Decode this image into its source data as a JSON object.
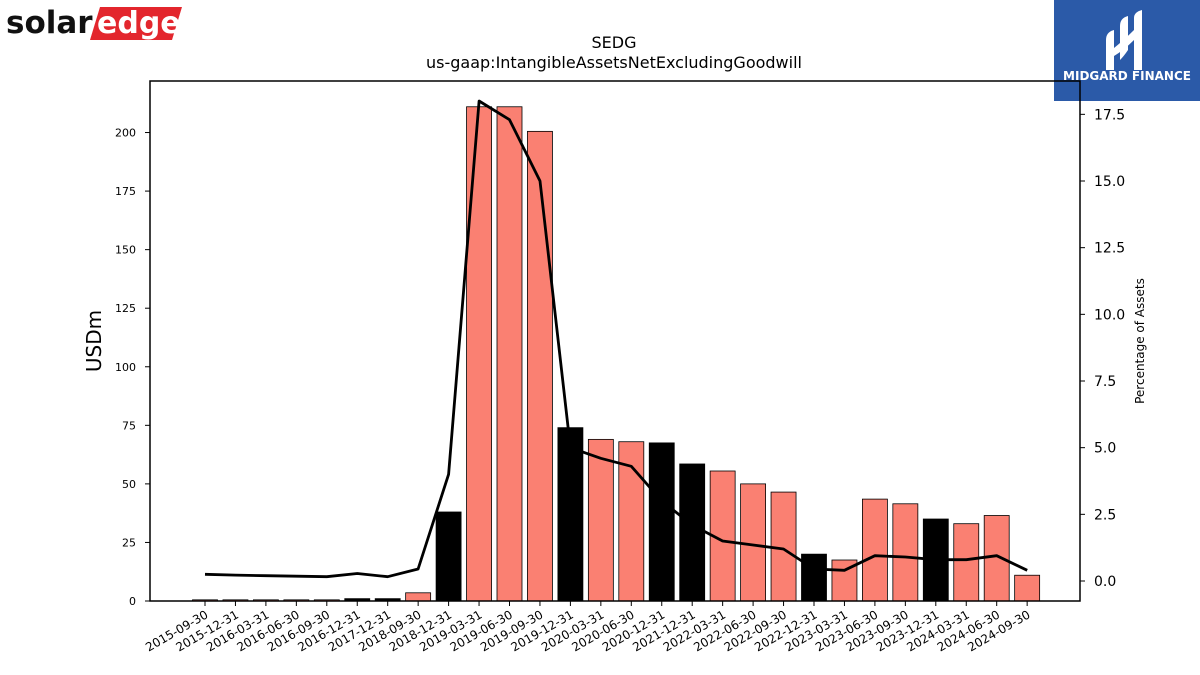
{
  "brand": {
    "logo_left_text_a": "solar",
    "logo_left_text_b": "edge",
    "logo_right_text": "MIDGARD FINANCE",
    "logo_left_color": "#e3262d",
    "logo_right_bg": "#2b5aa8"
  },
  "chart_data": {
    "type": "bar",
    "title": "SEDG",
    "subtitle": "us-gaap:IntangibleAssetsNetExcludingGoodwill",
    "ylabel": "USDm",
    "y2label": "Percentage of Assets",
    "ylim": [
      0,
      222
    ],
    "y2lim": [
      -0.75,
      18.75
    ],
    "yticks": [
      0,
      25,
      50,
      75,
      100,
      125,
      150,
      175,
      200
    ],
    "y2ticks": [
      0.0,
      2.5,
      5.0,
      7.5,
      10.0,
      12.5,
      15.0,
      17.5
    ],
    "y2tick_labels": [
      "0.0",
      "2.5",
      "5.0",
      "7.5",
      "10.0",
      "12.5",
      "15.0",
      "17.5"
    ],
    "categories": [
      "2015-09-30",
      "2015-12-31",
      "2016-03-31",
      "2016-06-30",
      "2016-09-30",
      "2016-12-31",
      "2017-12-31",
      "2018-09-30",
      "2018-12-31",
      "2019-03-31",
      "2019-06-30",
      "2019-09-30",
      "2019-12-31",
      "2020-03-31",
      "2020-06-30",
      "2020-12-31",
      "2021-12-31",
      "2022-03-31",
      "2022-06-30",
      "2022-09-30",
      "2022-12-31",
      "2023-03-31",
      "2023-06-30",
      "2023-09-30",
      "2023-12-31",
      "2024-03-31",
      "2024-06-30",
      "2024-09-30"
    ],
    "values": [
      0.5,
      0.5,
      0.5,
      0.5,
      0.5,
      1.0,
      1.0,
      3.5,
      38,
      211,
      211,
      200.5,
      74,
      69,
      68,
      67.5,
      58.5,
      55.5,
      50,
      46.5,
      20,
      17.5,
      43.5,
      41.5,
      35,
      33,
      36.5,
      11
    ],
    "bar_kind": [
      "q",
      "q",
      "q",
      "q",
      "q",
      "y",
      "y",
      "q",
      "y",
      "q",
      "q",
      "q",
      "y",
      "q",
      "q",
      "y",
      "y",
      "q",
      "q",
      "q",
      "y",
      "q",
      "q",
      "q",
      "y",
      "q",
      "q",
      "q"
    ],
    "bar_colors": {
      "q": "#fa8072",
      "y": "#000000"
    },
    "pct_of_assets": [
      0.25,
      0.22,
      0.2,
      0.18,
      0.16,
      0.28,
      0.16,
      0.45,
      4.0,
      18.0,
      17.3,
      15.0,
      5.0,
      4.6,
      4.3,
      3.0,
      2.1,
      1.5,
      1.35,
      1.2,
      0.45,
      0.4,
      0.95,
      0.9,
      0.8,
      0.8,
      0.95,
      0.4
    ],
    "line_color": "#000000"
  }
}
